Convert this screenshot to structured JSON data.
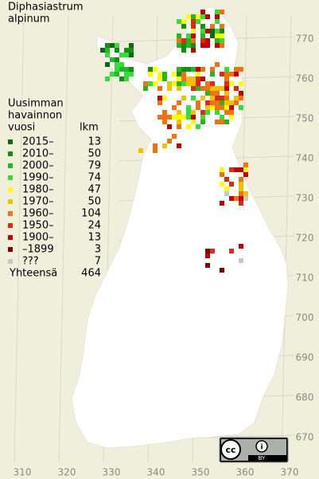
{
  "title": [
    "Diphasiastrum",
    "alpinum"
  ],
  "legend": {
    "heading": [
      "Uusimman",
      "havainnon",
      "vuosi"
    ],
    "count_heading": "lkm",
    "items": [
      {
        "label": "2015–",
        "count": 13,
        "color": "#0b6a0b"
      },
      {
        "label": "2010–",
        "count": 50,
        "color": "#138f13"
      },
      {
        "label": "2000–",
        "count": 79,
        "color": "#22b822"
      },
      {
        "label": "1990–",
        "count": 74,
        "color": "#36dd36"
      },
      {
        "label": "1980–",
        "count": 47,
        "color": "#ffff00"
      },
      {
        "label": "1970–",
        "count": 50,
        "color": "#f2c200"
      },
      {
        "label": "1960–",
        "count": 104,
        "color": "#f07212"
      },
      {
        "label": "1950–",
        "count": 24,
        "color": "#e02812"
      },
      {
        "label": "1900–",
        "count": 13,
        "color": "#c40000"
      },
      {
        "label": "–1899",
        "count": 3,
        "color": "#800000"
      },
      {
        "label": "???",
        "count": 7,
        "color": "#c8c8c8"
      }
    ],
    "total_label": "Yhteensä",
    "total": 464
  },
  "x_labels": [
    "310",
    "320",
    "330",
    "340",
    "350",
    "360",
    "370"
  ],
  "y_labels": [
    "770",
    "760",
    "750",
    "740",
    "730",
    "720",
    "710",
    "700",
    "690",
    "680",
    "670"
  ],
  "badge": "BY"
}
